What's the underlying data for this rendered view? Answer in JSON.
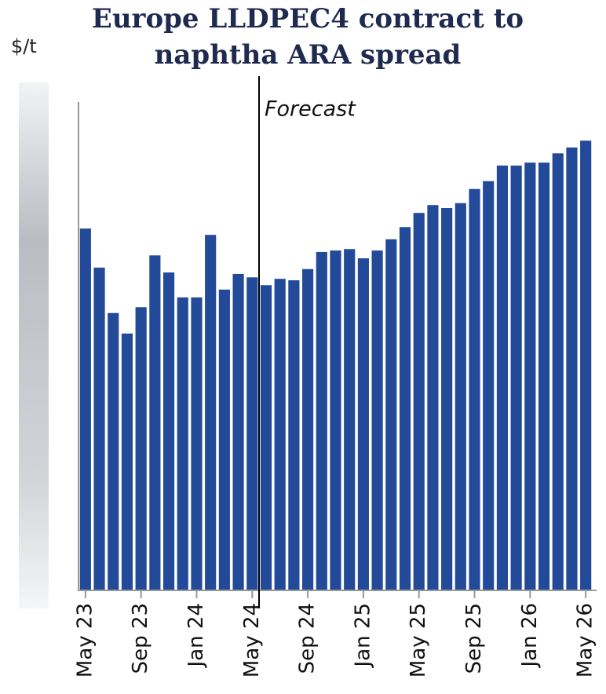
{
  "chart_data": {
    "type": "bar",
    "title": [
      "Europe LLDPEC4 contract to",
      "naphtha ARA spread"
    ],
    "y_label": "$/t",
    "annotation": "Forecast",
    "color": "#234a99",
    "categories": [
      "May 23",
      null,
      null,
      null,
      "Sep 23",
      null,
      null,
      null,
      "Jan 24",
      null,
      null,
      null,
      "May 24",
      null,
      null,
      null,
      "Sep 24",
      null,
      null,
      null,
      "Jan 25",
      null,
      null,
      null,
      "May 25",
      null,
      null,
      null,
      "Sep 25",
      null,
      null,
      null,
      "Jan 26",
      null,
      null,
      null,
      "May 26"
    ],
    "values": [
      74.1,
      66.1,
      56.8,
      52.6,
      58.0,
      68.6,
      65.1,
      60.0,
      60.0,
      72.8,
      61.6,
      64.8,
      64.1,
      62.5,
      63.8,
      63.5,
      65.8,
      69.3,
      69.6,
      69.9,
      68.0,
      69.6,
      71.9,
      74.4,
      77.3,
      78.9,
      78.3,
      79.3,
      82.2,
      83.8,
      87.0,
      87.0,
      87.6,
      87.6,
      89.5,
      90.7,
      92.1
    ],
    "ylim": [
      0,
      100
    ]
  }
}
